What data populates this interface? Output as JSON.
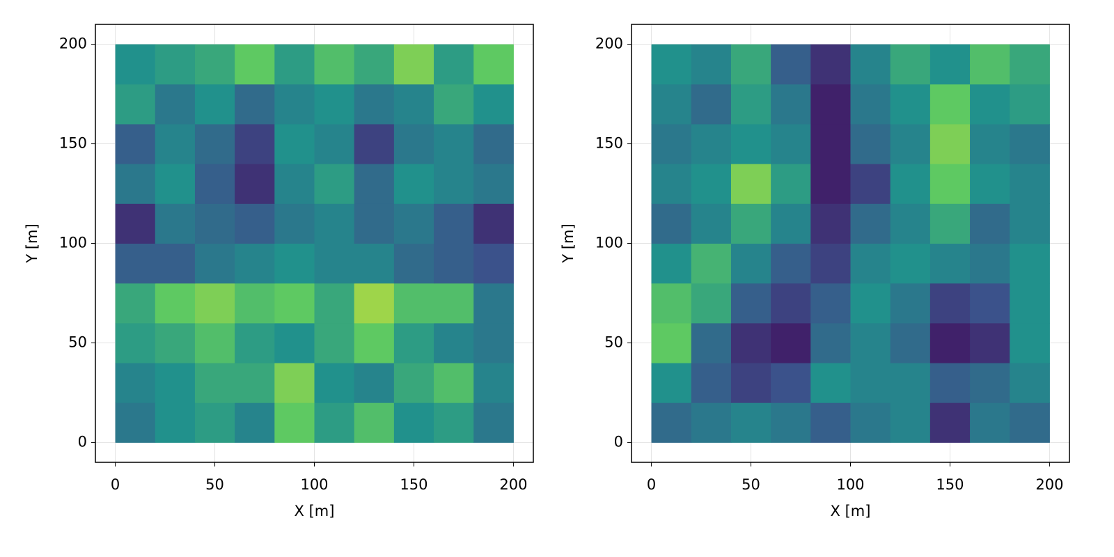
{
  "chart_data": [
    {
      "type": "heatmap",
      "xlabel": "X [m]",
      "ylabel": "Y [m]",
      "xlim": [
        -10,
        210
      ],
      "ylim": [
        -10,
        210
      ],
      "xticks": [
        0,
        50,
        100,
        150,
        200
      ],
      "yticks": [
        0,
        50,
        100,
        150,
        200
      ],
      "grid": true,
      "colormap": "viridis",
      "clim": [
        0,
        1
      ],
      "x_edges": [
        0,
        20,
        40,
        60,
        80,
        100,
        120,
        140,
        160,
        180,
        200
      ],
      "y_edges": [
        0,
        20,
        40,
        60,
        80,
        100,
        120,
        140,
        160,
        180,
        200
      ],
      "z": [
        [
          0.4,
          0.5,
          0.55,
          0.45,
          0.75,
          0.55,
          0.7,
          0.5,
          0.55,
          0.4
        ],
        [
          0.45,
          0.5,
          0.6,
          0.6,
          0.8,
          0.5,
          0.45,
          0.6,
          0.7,
          0.45
        ],
        [
          0.55,
          0.6,
          0.7,
          0.55,
          0.5,
          0.6,
          0.75,
          0.55,
          0.45,
          0.4
        ],
        [
          0.6,
          0.75,
          0.8,
          0.7,
          0.75,
          0.6,
          0.85,
          0.7,
          0.7,
          0.4
        ],
        [
          0.3,
          0.3,
          0.4,
          0.45,
          0.5,
          0.45,
          0.45,
          0.35,
          0.3,
          0.25
        ],
        [
          0.15,
          0.4,
          0.35,
          0.3,
          0.4,
          0.45,
          0.35,
          0.4,
          0.3,
          0.15
        ],
        [
          0.4,
          0.5,
          0.3,
          0.15,
          0.45,
          0.55,
          0.35,
          0.5,
          0.45,
          0.4
        ],
        [
          0.3,
          0.45,
          0.35,
          0.2,
          0.5,
          0.45,
          0.2,
          0.4,
          0.45,
          0.35
        ],
        [
          0.55,
          0.4,
          0.5,
          0.35,
          0.45,
          0.5,
          0.4,
          0.45,
          0.6,
          0.5
        ],
        [
          0.5,
          0.55,
          0.6,
          0.75,
          0.55,
          0.7,
          0.6,
          0.8,
          0.55,
          0.75
        ]
      ]
    },
    {
      "type": "heatmap",
      "xlabel": "X [m]",
      "ylabel": "Y [m]",
      "xlim": [
        -10,
        210
      ],
      "ylim": [
        -10,
        210
      ],
      "xticks": [
        0,
        50,
        100,
        150,
        200
      ],
      "yticks": [
        0,
        50,
        100,
        150,
        200
      ],
      "grid": true,
      "colormap": "viridis",
      "clim": [
        0,
        1
      ],
      "x_edges": [
        0,
        20,
        40,
        60,
        80,
        100,
        120,
        140,
        160,
        180,
        200
      ],
      "y_edges": [
        0,
        20,
        40,
        60,
        80,
        100,
        120,
        140,
        160,
        180,
        200
      ],
      "z": [
        [
          0.35,
          0.4,
          0.45,
          0.4,
          0.3,
          0.4,
          0.45,
          0.15,
          0.4,
          0.35
        ],
        [
          0.5,
          0.3,
          0.2,
          0.25,
          0.5,
          0.45,
          0.45,
          0.3,
          0.35,
          0.45
        ],
        [
          0.75,
          0.35,
          0.15,
          0.1,
          0.35,
          0.45,
          0.35,
          0.1,
          0.15,
          0.5
        ],
        [
          0.7,
          0.6,
          0.3,
          0.2,
          0.3,
          0.5,
          0.4,
          0.2,
          0.25,
          0.5
        ],
        [
          0.5,
          0.65,
          0.45,
          0.3,
          0.2,
          0.45,
          0.5,
          0.45,
          0.4,
          0.5
        ],
        [
          0.35,
          0.45,
          0.6,
          0.45,
          0.15,
          0.35,
          0.45,
          0.6,
          0.35,
          0.45
        ],
        [
          0.45,
          0.5,
          0.8,
          0.55,
          0.1,
          0.2,
          0.5,
          0.75,
          0.5,
          0.45
        ],
        [
          0.4,
          0.45,
          0.5,
          0.45,
          0.1,
          0.35,
          0.45,
          0.8,
          0.45,
          0.4
        ],
        [
          0.45,
          0.35,
          0.55,
          0.4,
          0.1,
          0.4,
          0.5,
          0.75,
          0.5,
          0.55
        ],
        [
          0.5,
          0.45,
          0.6,
          0.3,
          0.15,
          0.45,
          0.6,
          0.5,
          0.7,
          0.6
        ]
      ]
    }
  ]
}
